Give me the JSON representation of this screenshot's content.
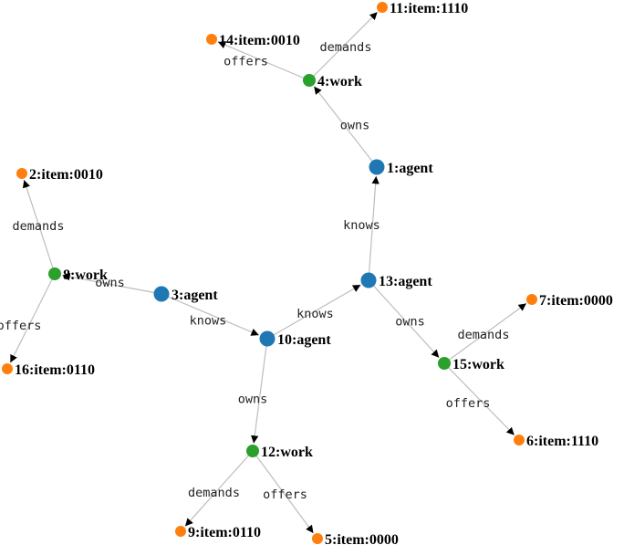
{
  "graph": {
    "colors": {
      "agent": "#1f77b4",
      "work": "#2ca02c",
      "item": "#ff7f0e",
      "edge": "#bdbdbd",
      "arrow": "#000000"
    },
    "nodes": [
      {
        "id": "1",
        "label": "1:agent",
        "type": "agent"
      },
      {
        "id": "2",
        "label": "2:item:0010",
        "type": "item"
      },
      {
        "id": "3",
        "label": "3:agent",
        "type": "agent"
      },
      {
        "id": "4",
        "label": "4:work",
        "type": "work"
      },
      {
        "id": "5",
        "label": "5:item:0000",
        "type": "item"
      },
      {
        "id": "6",
        "label": "6:item:1110",
        "type": "item"
      },
      {
        "id": "7",
        "label": "7:item:0000",
        "type": "item"
      },
      {
        "id": "8",
        "label": "8:work",
        "type": "work"
      },
      {
        "id": "9",
        "label": "9:item:0110",
        "type": "item"
      },
      {
        "id": "10",
        "label": "10:agent",
        "type": "agent"
      },
      {
        "id": "11",
        "label": "11:item:1110",
        "type": "item"
      },
      {
        "id": "12",
        "label": "12:work",
        "type": "work"
      },
      {
        "id": "13",
        "label": "13:agent",
        "type": "agent"
      },
      {
        "id": "14",
        "label": "14:item:0010",
        "type": "item"
      },
      {
        "id": "15",
        "label": "15:work",
        "type": "work"
      },
      {
        "id": "16",
        "label": "16:item:0110",
        "type": "item"
      }
    ],
    "edges": [
      {
        "source": "1",
        "target": "4",
        "label": "owns"
      },
      {
        "source": "4",
        "target": "11",
        "label": "demands"
      },
      {
        "source": "4",
        "target": "14",
        "label": "offers"
      },
      {
        "source": "13",
        "target": "1",
        "label": "knows"
      },
      {
        "source": "10",
        "target": "13",
        "label": "knows"
      },
      {
        "source": "3",
        "target": "10",
        "label": "knows"
      },
      {
        "source": "3",
        "target": "8",
        "label": "owns"
      },
      {
        "source": "8",
        "target": "2",
        "label": "demands"
      },
      {
        "source": "8",
        "target": "16",
        "label": "offers"
      },
      {
        "source": "10",
        "target": "12",
        "label": "owns"
      },
      {
        "source": "12",
        "target": "9",
        "label": "demands"
      },
      {
        "source": "12",
        "target": "5",
        "label": "offers"
      },
      {
        "source": "13",
        "target": "15",
        "label": "owns"
      },
      {
        "source": "15",
        "target": "7",
        "label": "demands"
      },
      {
        "source": "15",
        "target": "6",
        "label": "offers"
      }
    ]
  }
}
